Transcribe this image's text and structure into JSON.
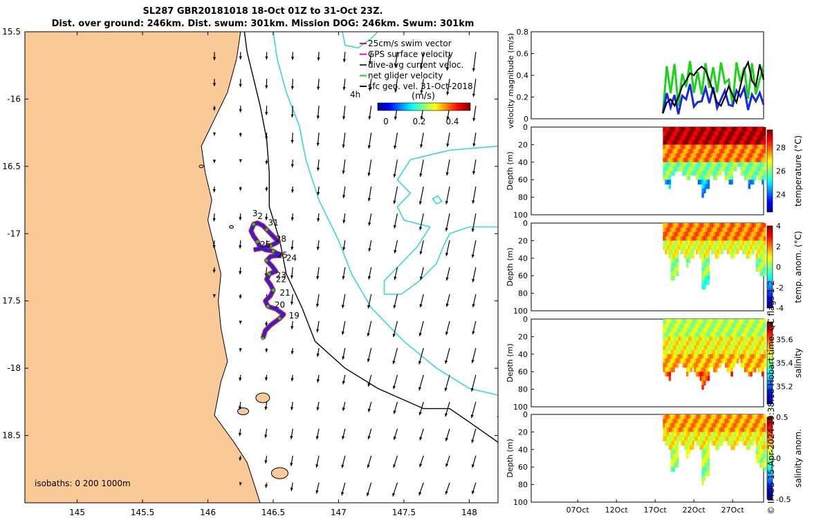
{
  "title_line1": "SL287 GBR20181018 18-Oct 01Z to 31-Oct 23Z.",
  "title_line2": "Dist. over ground: 246km. Dist. swum: 301km. Mission DOG: 246km. Swum: 301km",
  "side_note": "© IMOS 15-Apr-2024 19:38:18 Hobart time. QC flags 1  2",
  "colors": {
    "land": "#f9c997",
    "isobath_200": "#000000",
    "isobath_1000": "#35d8dc",
    "track_red": "#e8141e",
    "track_blue": "#1a26e6",
    "net_green": "#1bd31b",
    "magenta": "#e000e0"
  },
  "chart_data": [
    {
      "type": "scatter",
      "name": "map",
      "xlim": [
        144.6,
        148.22
      ],
      "ylim": [
        -19.0,
        -15.5
      ],
      "x_ticks": [
        145,
        145.5,
        146,
        146.5,
        147,
        147.5,
        148
      ],
      "x_tick_labels": [
        "145",
        "145.5",
        "146",
        "146.5",
        "147",
        "147.5",
        "148"
      ],
      "y_ticks": [
        -15.5,
        -16,
        -16.5,
        -17,
        -17.5,
        -18,
        -18.5
      ],
      "y_tick_labels": [
        "15.5",
        "-16",
        "16.5",
        "-17",
        "17.5",
        "-18",
        "18.5"
      ],
      "legend": {
        "entries": [
          "25cm/s swim vector",
          "GPS surface velocity",
          "dive-avg current veloc.",
          "net glider velocity",
          "sfc geo. vel. 31-Oct-2018"
        ],
        "scale_label": "4h",
        "colorbar_title": "(m/s)",
        "colorbar_ticks": [
          "0",
          "0.2",
          "0.4"
        ]
      },
      "isobaths_label": "isobaths: 0   200  1000m",
      "coastline": [
        [
          144.6,
          -15.5
        ],
        [
          146.25,
          -15.5
        ],
        [
          146.22,
          -15.7
        ],
        [
          146.15,
          -15.95
        ],
        [
          146.05,
          -16.15
        ],
        [
          145.95,
          -16.35
        ],
        [
          145.98,
          -16.55
        ],
        [
          146.03,
          -16.75
        ],
        [
          146.0,
          -16.9
        ],
        [
          146.05,
          -17.1
        ],
        [
          146.1,
          -17.3
        ],
        [
          146.08,
          -17.5
        ],
        [
          146.1,
          -17.7
        ],
        [
          146.15,
          -17.95
        ],
        [
          146.1,
          -18.1
        ],
        [
          146.05,
          -18.35
        ],
        [
          146.2,
          -18.55
        ],
        [
          146.3,
          -18.7
        ],
        [
          146.35,
          -18.85
        ],
        [
          146.4,
          -19.0
        ],
        [
          144.6,
          -19.0
        ]
      ],
      "isobath_200": [
        [
          146.28,
          -15.5
        ],
        [
          146.3,
          -15.65
        ],
        [
          146.35,
          -15.85
        ],
        [
          146.4,
          -16.05
        ],
        [
          146.45,
          -16.3
        ],
        [
          146.47,
          -16.55
        ],
        [
          146.47,
          -16.8
        ],
        [
          146.55,
          -17.05
        ],
        [
          146.6,
          -17.3
        ],
        [
          146.72,
          -17.55
        ],
        [
          146.82,
          -17.8
        ],
        [
          147.05,
          -18.0
        ],
        [
          147.3,
          -18.15
        ],
        [
          147.65,
          -18.3
        ],
        [
          147.85,
          -18.3
        ],
        [
          148.0,
          -18.4
        ],
        [
          148.22,
          -18.55
        ]
      ],
      "isobath_1000": [
        [
          146.5,
          -15.5
        ],
        [
          146.53,
          -15.7
        ],
        [
          146.6,
          -15.95
        ],
        [
          146.7,
          -16.2
        ],
        [
          146.75,
          -16.45
        ],
        [
          146.85,
          -16.75
        ],
        [
          147.0,
          -17.05
        ],
        [
          147.1,
          -17.3
        ],
        [
          147.25,
          -17.55
        ],
        [
          147.5,
          -17.8
        ],
        [
          147.75,
          -18.0
        ],
        [
          148.0,
          -18.15
        ],
        [
          148.22,
          -18.2
        ]
      ],
      "track_points": [
        [
          146.42,
          -17.78
        ],
        [
          146.44,
          -17.72
        ],
        [
          146.48,
          -17.68
        ],
        [
          146.55,
          -17.63
        ],
        [
          146.58,
          -17.6
        ],
        [
          146.52,
          -17.56
        ],
        [
          146.46,
          -17.54
        ],
        [
          146.44,
          -17.5
        ],
        [
          146.48,
          -17.46
        ],
        [
          146.5,
          -17.42
        ],
        [
          146.48,
          -17.38
        ],
        [
          146.45,
          -17.34
        ],
        [
          146.47,
          -17.3
        ],
        [
          146.52,
          -17.28
        ],
        [
          146.49,
          -17.24
        ],
        [
          146.45,
          -17.2
        ],
        [
          146.48,
          -17.17
        ],
        [
          146.55,
          -17.16
        ],
        [
          146.5,
          -17.13
        ],
        [
          146.44,
          -17.12
        ],
        [
          146.4,
          -17.1
        ],
        [
          146.38,
          -17.06
        ],
        [
          146.35,
          -17.02
        ],
        [
          146.33,
          -16.98
        ],
        [
          146.35,
          -16.93
        ],
        [
          146.38,
          -16.92
        ],
        [
          146.42,
          -16.94
        ],
        [
          146.45,
          -16.97
        ],
        [
          146.5,
          -17.02
        ],
        [
          146.54,
          -17.06
        ],
        [
          146.48,
          -17.09
        ],
        [
          146.41,
          -17.11
        ],
        [
          146.35,
          -17.12
        ]
      ],
      "day_labels": [
        {
          "text": "3",
          "lon": 146.34,
          "lat": -16.87
        },
        {
          "text": "2",
          "lon": 146.38,
          "lat": -16.89
        },
        {
          "text": "31",
          "lon": 146.46,
          "lat": -16.94
        },
        {
          "text": "28",
          "lon": 146.52,
          "lat": -17.06
        },
        {
          "text": "26",
          "lon": 146.4,
          "lat": -17.1
        },
        {
          "text": "25",
          "lon": 146.53,
          "lat": -17.18
        },
        {
          "text": "24",
          "lon": 146.6,
          "lat": -17.2
        },
        {
          "text": "23",
          "lon": 146.52,
          "lat": -17.33
        },
        {
          "text": "22",
          "lon": 146.52,
          "lat": -17.36
        },
        {
          "text": "21",
          "lon": 146.55,
          "lat": -17.46
        },
        {
          "text": "20",
          "lon": 146.51,
          "lat": -17.55
        },
        {
          "text": "19",
          "lon": 146.62,
          "lat": -17.63
        }
      ]
    },
    {
      "type": "line",
      "name": "velocity-magnitude",
      "ylabel": "velocity magnitude (m/s)",
      "ylim": [
        0,
        0.8
      ],
      "y_ticks": [
        "0",
        "0.2",
        "0.4",
        "0.6",
        "0.8"
      ],
      "xlim_day_of_month": [
        1,
        31
      ],
      "series": [
        {
          "name": "net glider velocity",
          "color": "#1bd31b",
          "x": [
            18,
            18.5,
            19,
            19.5,
            20,
            20.5,
            21,
            21.5,
            22,
            22.5,
            23,
            23.5,
            24,
            24.5,
            25,
            25.5,
            26,
            26.5,
            27,
            27.5,
            28,
            28.5,
            29,
            29.5,
            30,
            30.5,
            31
          ],
          "values": [
            0.05,
            0.45,
            0.2,
            0.5,
            0.15,
            0.45,
            0.3,
            0.5,
            0.2,
            0.42,
            0.25,
            0.55,
            0.3,
            0.45,
            0.2,
            0.5,
            0.35,
            0.4,
            0.15,
            0.5,
            0.3,
            0.45,
            0.2,
            0.55,
            0.25,
            0.35,
            0.45
          ]
        },
        {
          "name": "dive-avg current veloc.",
          "color": "#1a26e6",
          "x": [
            18,
            18.5,
            19,
            19.5,
            20,
            20.5,
            21,
            21.5,
            22,
            22.5,
            23,
            23.5,
            24,
            24.5,
            25,
            25.5,
            26,
            26.5,
            27,
            27.5,
            28,
            28.5,
            29,
            29.5,
            30,
            30.5,
            31
          ],
          "values": [
            0.02,
            0.2,
            0.1,
            0.25,
            0.08,
            0.22,
            0.15,
            0.28,
            0.1,
            0.18,
            0.2,
            0.3,
            0.12,
            0.25,
            0.08,
            0.2,
            0.3,
            0.15,
            0.1,
            0.22,
            0.18,
            0.3,
            0.12,
            0.25,
            0.15,
            0.2,
            0.1
          ]
        },
        {
          "name": "sfc geo. vel.",
          "color": "#000000",
          "x": [
            18,
            18.5,
            19,
            19.5,
            20,
            20.5,
            21,
            21.5,
            22,
            22.5,
            23,
            23.5,
            24,
            24.5,
            25,
            25.5,
            26,
            26.5,
            27,
            27.5,
            28,
            28.5,
            29,
            29.5,
            30,
            30.5,
            31
          ],
          "values": [
            0.05,
            0.15,
            0.18,
            0.12,
            0.2,
            0.3,
            0.35,
            0.42,
            0.4,
            0.45,
            0.48,
            0.45,
            0.35,
            0.25,
            0.15,
            0.12,
            0.2,
            0.3,
            0.22,
            0.15,
            0.3,
            0.45,
            0.52,
            0.35,
            0.3,
            0.5,
            0.36
          ]
        }
      ]
    },
    {
      "type": "heatmap",
      "name": "temperature",
      "ylabel": "Depth (m)",
      "ylim": [
        0,
        100
      ],
      "y_ticks": [
        "0",
        "20",
        "40",
        "60",
        "80",
        "100"
      ],
      "colorbar_label": "temperature (°C)",
      "colorbar_ticks": [
        "24",
        "26",
        "28"
      ],
      "clim": [
        22.5,
        29.5
      ],
      "columns": [
        {
          "day": 18,
          "max_depth": 62
        },
        {
          "day": 19,
          "max_depth": 52
        },
        {
          "day": 20,
          "max_depth": 48
        },
        {
          "day": 21,
          "max_depth": 55
        },
        {
          "day": 22,
          "max_depth": 58
        },
        {
          "day": 23,
          "max_depth": 72
        },
        {
          "day": 24,
          "max_depth": 55
        },
        {
          "day": 25,
          "max_depth": 50
        },
        {
          "day": 26,
          "max_depth": 60
        },
        {
          "day": 27,
          "max_depth": 45
        },
        {
          "day": 28,
          "max_depth": 55
        },
        {
          "day": 29,
          "max_depth": 62
        },
        {
          "day": 30,
          "max_depth": 58
        },
        {
          "day": 31,
          "max_depth": 52
        }
      ]
    },
    {
      "type": "heatmap",
      "name": "temperature-anomaly",
      "ylabel": "Depth (m)",
      "ylim": [
        0,
        100
      ],
      "y_ticks": [
        "0",
        "20",
        "40",
        "60",
        "80",
        "100"
      ],
      "colorbar_label": "temp. anom. (°C)",
      "colorbar_ticks": [
        "4",
        "2",
        "0",
        "-2",
        "-4"
      ],
      "clim": [
        -4,
        4
      ],
      "columns": [
        {
          "day": 18,
          "max_depth": 32
        },
        {
          "day": 19,
          "max_depth": 60
        },
        {
          "day": 20,
          "max_depth": 32
        },
        {
          "day": 21,
          "max_depth": 42
        },
        {
          "day": 22,
          "max_depth": 32
        },
        {
          "day": 23,
          "max_depth": 70
        },
        {
          "day": 24,
          "max_depth": 32
        },
        {
          "day": 25,
          "max_depth": 32
        },
        {
          "day": 26,
          "max_depth": 32
        },
        {
          "day": 27,
          "max_depth": 32
        },
        {
          "day": 28,
          "max_depth": 32
        },
        {
          "day": 29,
          "max_depth": 32
        },
        {
          "day": 30,
          "max_depth": 55
        },
        {
          "day": 31,
          "max_depth": 55
        }
      ]
    },
    {
      "type": "heatmap",
      "name": "salinity",
      "ylabel": "Depth (m)",
      "ylim": [
        0,
        100
      ],
      "y_ticks": [
        "0",
        "20",
        "40",
        "60",
        "80",
        "100"
      ],
      "colorbar_label": "salinity",
      "colorbar_ticks": [
        "35.6",
        "35.4",
        "35.2"
      ],
      "clim": [
        35.05,
        35.75
      ],
      "columns": [
        {
          "day": 18,
          "max_depth": 62
        },
        {
          "day": 19,
          "max_depth": 55
        },
        {
          "day": 20,
          "max_depth": 50
        },
        {
          "day": 21,
          "max_depth": 58
        },
        {
          "day": 22,
          "max_depth": 62
        },
        {
          "day": 23,
          "max_depth": 72
        },
        {
          "day": 24,
          "max_depth": 55
        },
        {
          "day": 25,
          "max_depth": 50
        },
        {
          "day": 26,
          "max_depth": 58
        },
        {
          "day": 27,
          "max_depth": 48
        },
        {
          "day": 28,
          "max_depth": 55
        },
        {
          "day": 29,
          "max_depth": 60
        },
        {
          "day": 30,
          "max_depth": 58
        },
        {
          "day": 31,
          "max_depth": 50
        }
      ]
    },
    {
      "type": "heatmap",
      "name": "salinity-anomaly",
      "ylabel": "Depth (m)",
      "ylim": [
        0,
        100
      ],
      "y_ticks": [
        "0",
        "20",
        "40",
        "60",
        "80",
        "100"
      ],
      "colorbar_label": "salinity anom.",
      "colorbar_ticks": [
        "0.5",
        "0",
        "-0.5"
      ],
      "clim": [
        -0.5,
        0.5
      ],
      "x_ticks": [
        "07Oct",
        "12Oct",
        "17Oct",
        "22Oct",
        "27Oct"
      ],
      "columns": [
        {
          "day": 18,
          "max_depth": 32
        },
        {
          "day": 19,
          "max_depth": 60
        },
        {
          "day": 20,
          "max_depth": 32
        },
        {
          "day": 21,
          "max_depth": 42
        },
        {
          "day": 22,
          "max_depth": 32
        },
        {
          "day": 23,
          "max_depth": 72
        },
        {
          "day": 24,
          "max_depth": 32
        },
        {
          "day": 25,
          "max_depth": 32
        },
        {
          "day": 26,
          "max_depth": 32
        },
        {
          "day": 27,
          "max_depth": 32
        },
        {
          "day": 28,
          "max_depth": 32
        },
        {
          "day": 29,
          "max_depth": 32
        },
        {
          "day": 30,
          "max_depth": 55
        },
        {
          "day": 31,
          "max_depth": 60
        }
      ]
    }
  ]
}
